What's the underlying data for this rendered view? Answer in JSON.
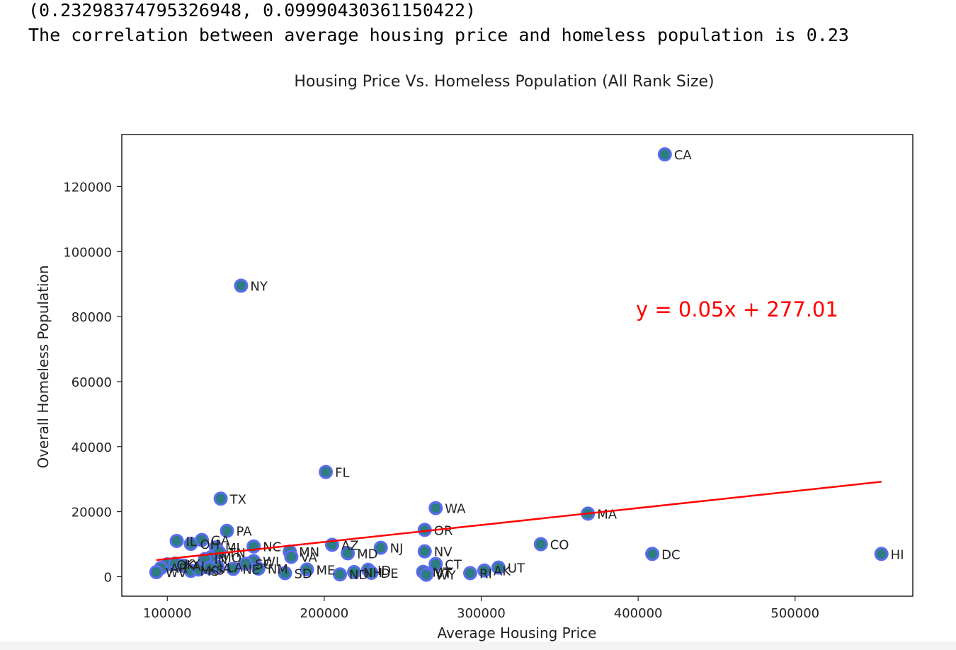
{
  "output": {
    "line1": "(0.23298374795326948, 0.09990430361150422)",
    "line2": "The correlation between average housing price and homeless population is 0.23"
  },
  "chart_data": {
    "type": "scatter",
    "title": "Housing Price Vs. Homeless Population (All Rank Size)",
    "xlabel": "Average Housing Price",
    "ylabel": "Overall Homeless Population",
    "xlim": [
      71000,
      575000
    ],
    "ylim": [
      -6000,
      136000
    ],
    "xticks": [
      100000,
      200000,
      300000,
      400000,
      500000
    ],
    "yticks": [
      0,
      20000,
      40000,
      60000,
      80000,
      100000,
      120000
    ],
    "marker_fill": "#2e7d83",
    "marker_edge": "#5b6cf2",
    "line_color": "#ff0000",
    "annotation": "y = 0.05x + 277.01",
    "annotation_color": "#ff0000",
    "regression": {
      "x": [
        93000,
        555000
      ],
      "y": [
        5100,
        29200
      ]
    },
    "points": [
      {
        "label": "CA",
        "x": 417000,
        "y": 129900
      },
      {
        "label": "NY",
        "x": 147000,
        "y": 89500
      },
      {
        "label": "FL",
        "x": 201000,
        "y": 32200
      },
      {
        "label": "TX",
        "x": 134000,
        "y": 24000
      },
      {
        "label": "WA",
        "x": 271000,
        "y": 21100
      },
      {
        "label": "MA",
        "x": 368000,
        "y": 19400
      },
      {
        "label": "PA",
        "x": 138000,
        "y": 14100
      },
      {
        "label": "OR",
        "x": 264000,
        "y": 14400
      },
      {
        "label": "IL",
        "x": 106000,
        "y": 11000
      },
      {
        "label": "GA",
        "x": 122000,
        "y": 11300
      },
      {
        "label": "OH",
        "x": 115000,
        "y": 10100
      },
      {
        "label": "MI",
        "x": 131000,
        "y": 9000
      },
      {
        "label": "NC",
        "x": 155000,
        "y": 9300
      },
      {
        "label": "AZ",
        "x": 205000,
        "y": 9800
      },
      {
        "label": "NJ",
        "x": 236000,
        "y": 8900
      },
      {
        "label": "CO",
        "x": 338000,
        "y": 10000
      },
      {
        "label": "MD",
        "x": 215000,
        "y": 7200
      },
      {
        "label": "NV",
        "x": 264000,
        "y": 7800
      },
      {
        "label": "DC",
        "x": 409000,
        "y": 7000
      },
      {
        "label": "HI",
        "x": 555000,
        "y": 7000
      },
      {
        "label": "MN",
        "x": 178000,
        "y": 7700
      },
      {
        "label": "VA",
        "x": 179000,
        "y": 6100
      },
      {
        "label": "MO",
        "x": 128000,
        "y": 6000
      },
      {
        "label": "TN",
        "x": 133000,
        "y": 7500
      },
      {
        "label": "IN",
        "x": 124000,
        "y": 5400
      },
      {
        "label": "OK",
        "x": 100000,
        "y": 3800
      },
      {
        "label": "KY",
        "x": 105000,
        "y": 4000
      },
      {
        "label": "AL",
        "x": 110000,
        "y": 3400
      },
      {
        "label": "WI",
        "x": 155000,
        "y": 4800
      },
      {
        "label": "SC",
        "x": 150000,
        "y": 4000
      },
      {
        "label": "LA",
        "x": 132000,
        "y": 3000
      },
      {
        "label": "UT",
        "x": 311000,
        "y": 2800
      },
      {
        "label": "CT",
        "x": 271000,
        "y": 3900
      },
      {
        "label": "AR",
        "x": 96000,
        "y": 2700
      },
      {
        "label": "MS",
        "x": 115000,
        "y": 1800
      },
      {
        "label": "WV",
        "x": 93000,
        "y": 1400
      },
      {
        "label": "KS",
        "x": 120000,
        "y": 2200
      },
      {
        "label": "IA",
        "x": 127000,
        "y": 2700
      },
      {
        "label": "NE",
        "x": 142000,
        "y": 2400
      },
      {
        "label": "NM",
        "x": 158000,
        "y": 2500
      },
      {
        "label": "ID",
        "x": 228000,
        "y": 2100
      },
      {
        "label": "ME",
        "x": 189000,
        "y": 2200
      },
      {
        "label": "SD",
        "x": 175000,
        "y": 1100
      },
      {
        "label": "ND",
        "x": 210000,
        "y": 700
      },
      {
        "label": "NH",
        "x": 219000,
        "y": 1400
      },
      {
        "label": "DE",
        "x": 230000,
        "y": 1200
      },
      {
        "label": "VT",
        "x": 265000,
        "y": 1100
      },
      {
        "label": "MT",
        "x": 263000,
        "y": 1500
      },
      {
        "label": "WY",
        "x": 265000,
        "y": 600
      },
      {
        "label": "RI",
        "x": 293000,
        "y": 1100
      },
      {
        "label": "AK",
        "x": 302000,
        "y": 1900
      }
    ]
  }
}
